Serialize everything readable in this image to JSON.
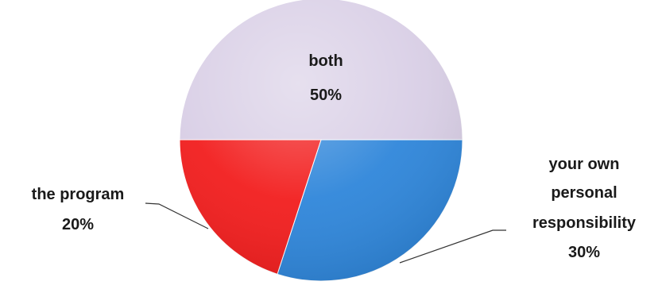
{
  "chart_data": {
    "type": "pie",
    "title": "",
    "slices": [
      {
        "label": "both",
        "value": 50,
        "value_label": "50%",
        "color": "#D9CFE6"
      },
      {
        "label": "your own personal responsibility",
        "value": 30,
        "value_label": "30%",
        "color": "#2F86DA"
      },
      {
        "label": "the program",
        "value": 20,
        "value_label": "20%",
        "color": "#F21E1E"
      }
    ],
    "legend": "none",
    "data_labels": "outside-with-leader-lines"
  },
  "labels": {
    "both_name": "both",
    "both_value": "50%",
    "yours_line1": "your own",
    "yours_line2": "personal",
    "yours_line3": "responsibility",
    "yours_value": "30%",
    "program_name": "the program",
    "program_value": "20%"
  }
}
